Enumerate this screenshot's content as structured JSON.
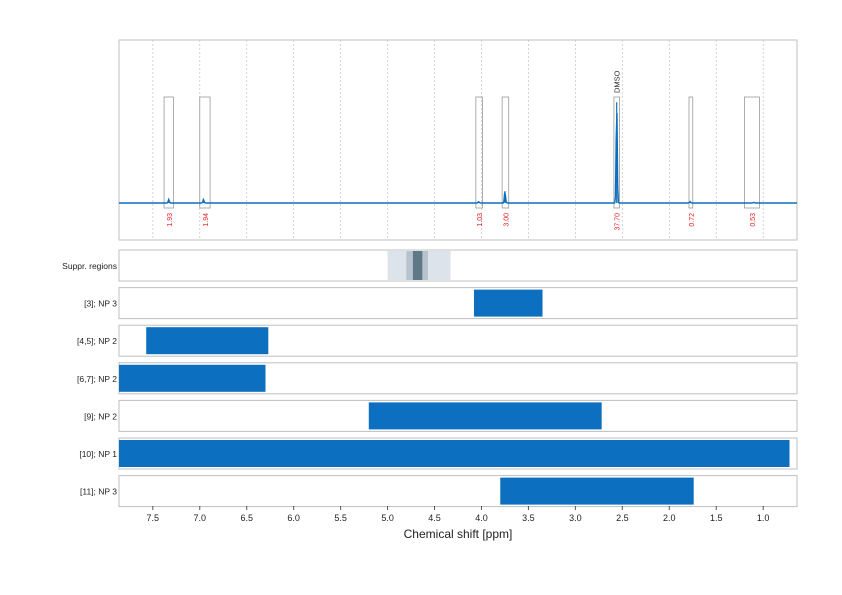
{
  "chart_data": {
    "type": "nmr-spectrum",
    "xlabel": "Chemical shift [ppm]",
    "xlim": [
      7.86,
      0.64
    ],
    "x_ticks": [
      {
        "value": 7.5,
        "label": "7.5"
      },
      {
        "value": 7.0,
        "label": "7.0"
      },
      {
        "value": 6.5,
        "label": "6.5"
      },
      {
        "value": 6.0,
        "label": "6.0"
      },
      {
        "value": 5.5,
        "label": "5.5"
      },
      {
        "value": 5.0,
        "label": "5.0"
      },
      {
        "value": 4.5,
        "label": "4.5"
      },
      {
        "value": 4.0,
        "label": "4.0"
      },
      {
        "value": 3.5,
        "label": "3.5"
      },
      {
        "value": 3.0,
        "label": "3.0"
      },
      {
        "value": 2.5,
        "label": "2.5"
      },
      {
        "value": 2.0,
        "label": "2.0"
      },
      {
        "value": 1.5,
        "label": "1.5"
      },
      {
        "value": 1.0,
        "label": "1.0"
      }
    ],
    "grid": true,
    "spectrum": {
      "color": "#0d6fbf",
      "baseline": 0.0,
      "peaks": [
        {
          "ppm": 7.33,
          "height": 0.025
        },
        {
          "ppm": 6.96,
          "height": 0.025
        },
        {
          "ppm": 4.03,
          "height": 0.01
        },
        {
          "ppm": 3.75,
          "height": 0.085
        },
        {
          "ppm": 2.56,
          "height": 0.72
        },
        {
          "ppm": 1.78,
          "height": 0.01
        },
        {
          "ppm": 1.1,
          "height": 0.005
        }
      ]
    },
    "integration_regions": [
      {
        "from": 7.38,
        "to": 7.28,
        "value": "1.93"
      },
      {
        "from": 7.0,
        "to": 6.89,
        "value": "1.94"
      },
      {
        "from": 4.06,
        "to": 3.99,
        "value": "1.03"
      },
      {
        "from": 3.78,
        "to": 3.71,
        "value": "3.00"
      },
      {
        "from": 2.59,
        "to": 2.53,
        "value": "37.70",
        "annotation": "DMSO"
      },
      {
        "from": 1.79,
        "to": 1.75,
        "value": "0.72"
      },
      {
        "from": 1.2,
        "to": 1.04,
        "value": "0.53"
      }
    ],
    "suppressed_region": {
      "label": "Suppr. regions",
      "bands": [
        {
          "from": 5.0,
          "to": 4.33,
          "shade": "#dde3ea"
        },
        {
          "from": 4.8,
          "to": 4.57,
          "shade": "#b6c2cc"
        },
        {
          "from": 4.73,
          "to": 4.63,
          "shade": "#5f7885"
        }
      ]
    },
    "range_rows": [
      {
        "label": "[3]; NP 3",
        "from": 4.08,
        "to": 3.35
      },
      {
        "label": "[4,5]; NP 2",
        "from": 7.57,
        "to": 6.27
      },
      {
        "label": "[6,7]; NP 2",
        "from": 7.86,
        "to": 6.3
      },
      {
        "label": "[9]; NP 2",
        "from": 5.2,
        "to": 2.72
      },
      {
        "label": "[10]; NP 1",
        "from": 7.86,
        "to": 0.72
      },
      {
        "label": "[11]; NP 3",
        "from": 3.8,
        "to": 1.74
      }
    ],
    "colors": {
      "bar": "#0d6fbf",
      "integral_text": "#e02020",
      "frame": "#bfbfbf"
    }
  }
}
